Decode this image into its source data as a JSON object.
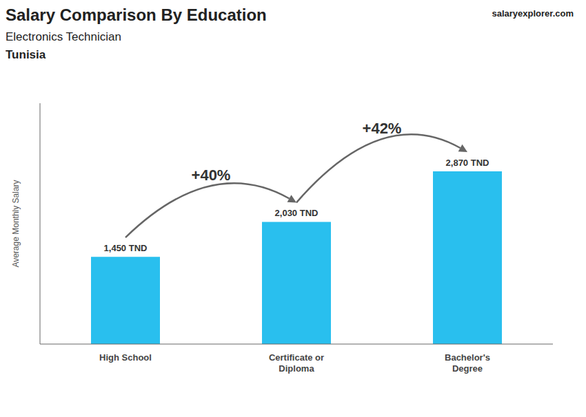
{
  "chart_data": {
    "type": "bar",
    "title": "Salary Comparison By Education",
    "subtitle": "Electronics Technician",
    "country": "Tunisia",
    "source": "salaryexplorer.com",
    "ylabel": "Average Monthly Salary",
    "categories": [
      "High School",
      "Certificate or\nDiploma",
      "Bachelor's\nDegree"
    ],
    "values": [
      1450,
      2030,
      2870
    ],
    "value_labels": [
      "1,450 TND",
      "2,030 TND",
      "2,870 TND"
    ],
    "data_labels": true,
    "annotations": [
      "+40%",
      "+42%"
    ],
    "color": "#29BFEE",
    "ylim": [
      0,
      4000
    ],
    "tick_labels": "x",
    "grid": false
  }
}
